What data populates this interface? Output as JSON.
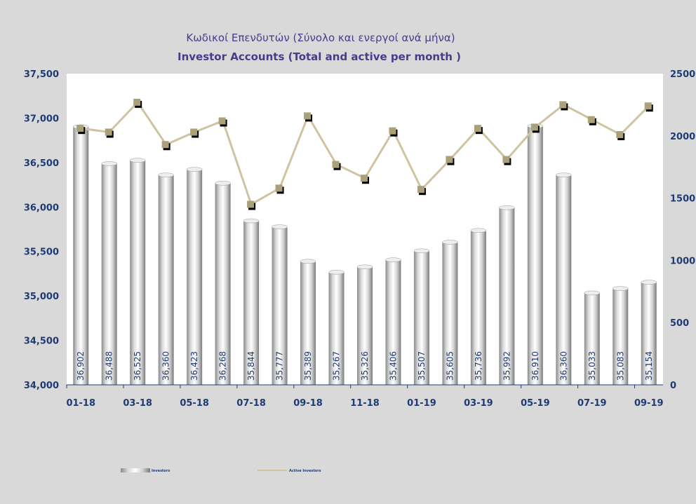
{
  "chart_data": {
    "type": "bar",
    "title": "Κωδικοί Επενδυτών (Σύνολο και ενεργοί ανά μήνα)",
    "subtitle": "Investor Accounts (Total and active per month )",
    "x_tick_labels": [
      "01-18",
      "03-18",
      "05-18",
      "07-18",
      "09-18",
      "11-18",
      "01-19",
      "03-19",
      "05-19",
      "07-19",
      "09-19"
    ],
    "categories": [
      "01-18",
      "02-18",
      "03-18",
      "04-18",
      "05-18",
      "06-18",
      "07-18",
      "08-18",
      "09-18",
      "10-18",
      "11-18",
      "12-18",
      "01-19",
      "02-19",
      "03-19",
      "04-19",
      "05-19",
      "06-19",
      "07-19",
      "08-19",
      "09-19"
    ],
    "series": [
      {
        "name": "Investors",
        "type": "bar",
        "axis": "left",
        "values": [
          36902,
          36488,
          36525,
          36360,
          36423,
          36268,
          35844,
          35777,
          35389,
          35267,
          35326,
          35406,
          35507,
          35605,
          35736,
          35992,
          36910,
          36360,
          35033,
          35083,
          35154
        ],
        "labels": [
          "36,902",
          "36,488",
          "36,525",
          "36,360",
          "36,423",
          "36,268",
          "35,844",
          "35,777",
          "35,389",
          "35,267",
          "35,326",
          "35,406",
          "35,507",
          "35,605",
          "35,736",
          "35,992",
          "36,910",
          "36,360",
          "35,033",
          "35,083",
          "35,154"
        ]
      },
      {
        "name": "Active Investors",
        "type": "line",
        "axis": "right",
        "values": [
          2060,
          2030,
          2270,
          1930,
          2030,
          2120,
          1450,
          1580,
          2160,
          1770,
          1660,
          2040,
          1570,
          1810,
          2060,
          1810,
          2070,
          2250,
          2130,
          2010,
          2240
        ]
      }
    ],
    "y_left": {
      "min": 34000,
      "max": 37500,
      "ticks": [
        "34,000",
        "34,500",
        "35,000",
        "35,500",
        "36,000",
        "36,500",
        "37,000",
        "37,500"
      ]
    },
    "y_right": {
      "min": 0,
      "max": 2500,
      "ticks": [
        "0",
        "500",
        "1000",
        "1500",
        "2000",
        "2500"
      ]
    },
    "colors": {
      "bar": "#c8c8c8",
      "line": "#cfc3a0",
      "marker": "#aaa07a",
      "marker_shadow": "#000000",
      "text": "#1f3b73",
      "title": "#4b3a8c"
    },
    "grid": false,
    "legend": "bottom"
  }
}
